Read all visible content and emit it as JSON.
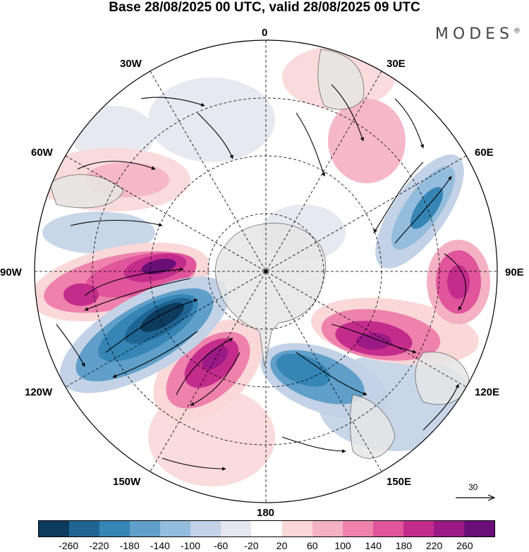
{
  "header": {
    "title": "Base 28/08/2025 00 UTC, valid 28/08/2025 09 UTC",
    "brand": "MODES",
    "brand_mark": "®"
  },
  "longitude_labels": {
    "lon_0": "0",
    "lon_30e": "30E",
    "lon_60e": "60E",
    "lon_90e": "90E",
    "lon_120e": "120E",
    "lon_150e": "150E",
    "lon_180": "180",
    "lon_150w": "150W",
    "lon_120w": "120W",
    "lon_90w": "90W",
    "lon_60w": "60W",
    "lon_30w": "30W"
  },
  "reference_vector": {
    "label": "30"
  },
  "colorbar": {
    "colors": [
      "#0d3b5e",
      "#1f6594",
      "#3585b5",
      "#5f9fc9",
      "#93bcdd",
      "#c3d2e6",
      "#e6e6f0",
      "#ffffff",
      "#fad8d8",
      "#f5b1c4",
      "#ee82ac",
      "#e0559b",
      "#c42c8c",
      "#9b1a86",
      "#6a0f78"
    ],
    "tick_labels": [
      "-260",
      "-220",
      "-180",
      "-140",
      "-100",
      "-60",
      "-20",
      "20",
      "60",
      "100",
      "140",
      "180",
      "220",
      "260"
    ]
  },
  "map_colors": {
    "land": "#e6e6e6",
    "pos_light": "#fad8d8",
    "pos_mid": "#f5b1c4",
    "pos_strong": "#e0559b",
    "pos_max": "#9b1a86",
    "neg_light": "#c3d2e6",
    "neg_mid": "#5f9fc9",
    "neg_strong": "#1f6594",
    "neg_max": "#0d3b5e"
  }
}
